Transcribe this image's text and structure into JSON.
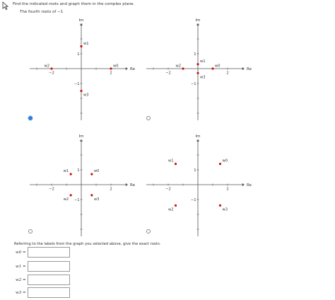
{
  "question": "Find the indicated roots and graph them in the complex plane.",
  "subtitle": "The fourth roots of −1",
  "axis_labels": {
    "re": "Re",
    "im": "Im"
  },
  "colors": {
    "point": "#cc1111",
    "axis": "#555555",
    "radio_selected": "#2a7fd4"
  },
  "options": [
    {
      "selected": true,
      "ticks": {
        "x": [
          "−2",
          "2"
        ],
        "y": [
          "1",
          "−1"
        ]
      },
      "points": [
        {
          "label": "w1",
          "x": 0,
          "y": 1.5
        },
        {
          "label": "w2",
          "x": -2,
          "y": 0
        },
        {
          "label": "w0",
          "x": 2,
          "y": 0
        },
        {
          "label": "w3",
          "x": 0,
          "y": -1.5
        }
      ]
    },
    {
      "selected": false,
      "ticks": {
        "x": [
          "−2",
          "2"
        ],
        "y": [
          "1",
          "−1"
        ]
      },
      "points": [
        {
          "label": "w1",
          "x": 0,
          "y": 0.3
        },
        {
          "label": "w2",
          "x": -1,
          "y": 0
        },
        {
          "label": "w0",
          "x": 1,
          "y": 0
        },
        {
          "label": "w3",
          "x": 0,
          "y": -0.3
        }
      ]
    },
    {
      "selected": false,
      "ticks": {
        "x": [
          "−2",
          "2"
        ],
        "y": [
          "1",
          "−1"
        ]
      },
      "points": [
        {
          "label": "w1",
          "x": -0.707,
          "y": 0.707
        },
        {
          "label": "w0",
          "x": 0.707,
          "y": 0.707
        },
        {
          "label": "w2",
          "x": -0.707,
          "y": -0.707
        },
        {
          "label": "w3",
          "x": 0.707,
          "y": -0.707
        }
      ]
    },
    {
      "selected": false,
      "ticks": {
        "x": [
          "−2",
          "2"
        ],
        "y": [
          "1",
          "−1"
        ]
      },
      "points": [
        {
          "label": "w1",
          "x": -1.5,
          "y": 1.4
        },
        {
          "label": "w0",
          "x": 1.5,
          "y": 1.4
        },
        {
          "label": "w2",
          "x": -1.5,
          "y": -1.4
        },
        {
          "label": "w3",
          "x": 1.5,
          "y": -1.4
        }
      ]
    }
  ],
  "answer_prompt": "Referring to the labels from the graph you selected above, give the exact roots.",
  "answers": [
    {
      "label": "w0 =",
      "value": ""
    },
    {
      "label": "w1 =",
      "value": ""
    },
    {
      "label": "w2 =",
      "value": ""
    },
    {
      "label": "w3 =",
      "value": ""
    }
  ]
}
